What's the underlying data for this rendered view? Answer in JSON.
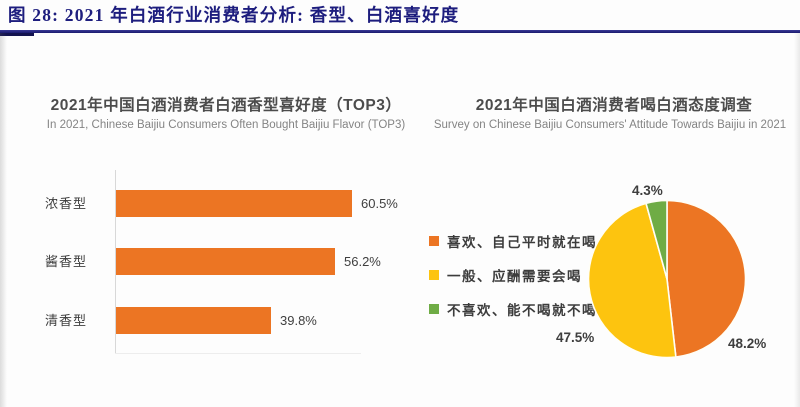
{
  "header": {
    "title": "图 28: 2021 年白酒行业消费者分析: 香型、白酒喜好度",
    "accent_color": "#1d1d7e"
  },
  "chart_data": [
    {
      "type": "bar",
      "orientation": "horizontal",
      "title": "2021年中国白酒消费者白酒香型喜好度（TOP3）",
      "subtitle": "In 2021, Chinese Baijiu Consumers Often Bought Baijiu Flavor (TOP3)",
      "categories": [
        "浓香型",
        "酱香型",
        "清香型"
      ],
      "values": [
        60.5,
        56.2,
        39.8
      ],
      "value_labels": [
        "60.5%",
        "56.2%",
        "39.8%"
      ],
      "bar_color": "#EC7523",
      "xlim": [
        0,
        62
      ],
      "grid": false,
      "legend_position": "none"
    },
    {
      "type": "pie",
      "title": "2021年中国白酒消费者喝白酒态度调查",
      "subtitle": "Survey on Chinese Baijiu Consumers' Attitude Towards Baijiu in 2021",
      "direction": "clockwise",
      "start_angle_deg": 0,
      "legend_position": "left",
      "slices": [
        {
          "label": "喜欢、自己平时就在喝",
          "value": 48.2,
          "value_label": "48.2%",
          "color": "#EC7523"
        },
        {
          "label": "一般、应酬需要会喝",
          "value": 47.5,
          "value_label": "47.5%",
          "color": "#FDC40F"
        },
        {
          "label": "不喜欢、能不喝就不喝",
          "value": 4.3,
          "value_label": "4.3%",
          "color": "#6FAC45"
        }
      ]
    }
  ]
}
